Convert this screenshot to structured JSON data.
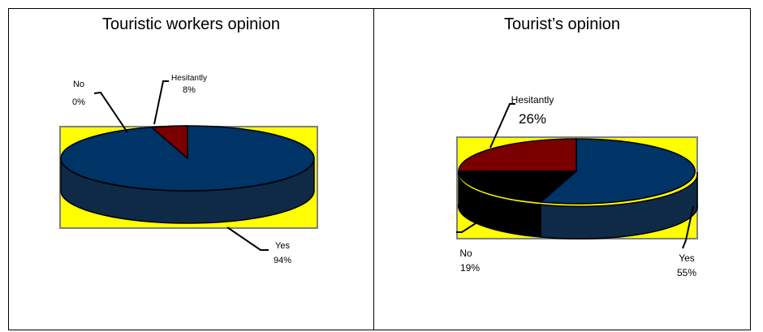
{
  "chart_data": [
    {
      "type": "pie",
      "title": "Touristic workers opinion",
      "slices": [
        {
          "label": "Yes",
          "value": 94,
          "value_text": "94%",
          "color": "#003366"
        },
        {
          "label": "Hesitantly",
          "value": 8,
          "value_text": "8%",
          "color": "#7a0000"
        },
        {
          "label": "No",
          "value": 0,
          "value_text": "0%",
          "color": "#000000"
        }
      ],
      "background_color": "#ffff00"
    },
    {
      "type": "pie",
      "title": "Tourist’s opinion",
      "slices": [
        {
          "label": "Yes",
          "value": 55,
          "value_text": "55%",
          "color": "#003366"
        },
        {
          "label": "Hesitantly",
          "value": 26,
          "value_text": "26%",
          "color": "#7a0000"
        },
        {
          "label": "No",
          "value": 19,
          "value_text": "19%",
          "color": "#000000"
        }
      ],
      "background_color": "#ffff00"
    }
  ]
}
